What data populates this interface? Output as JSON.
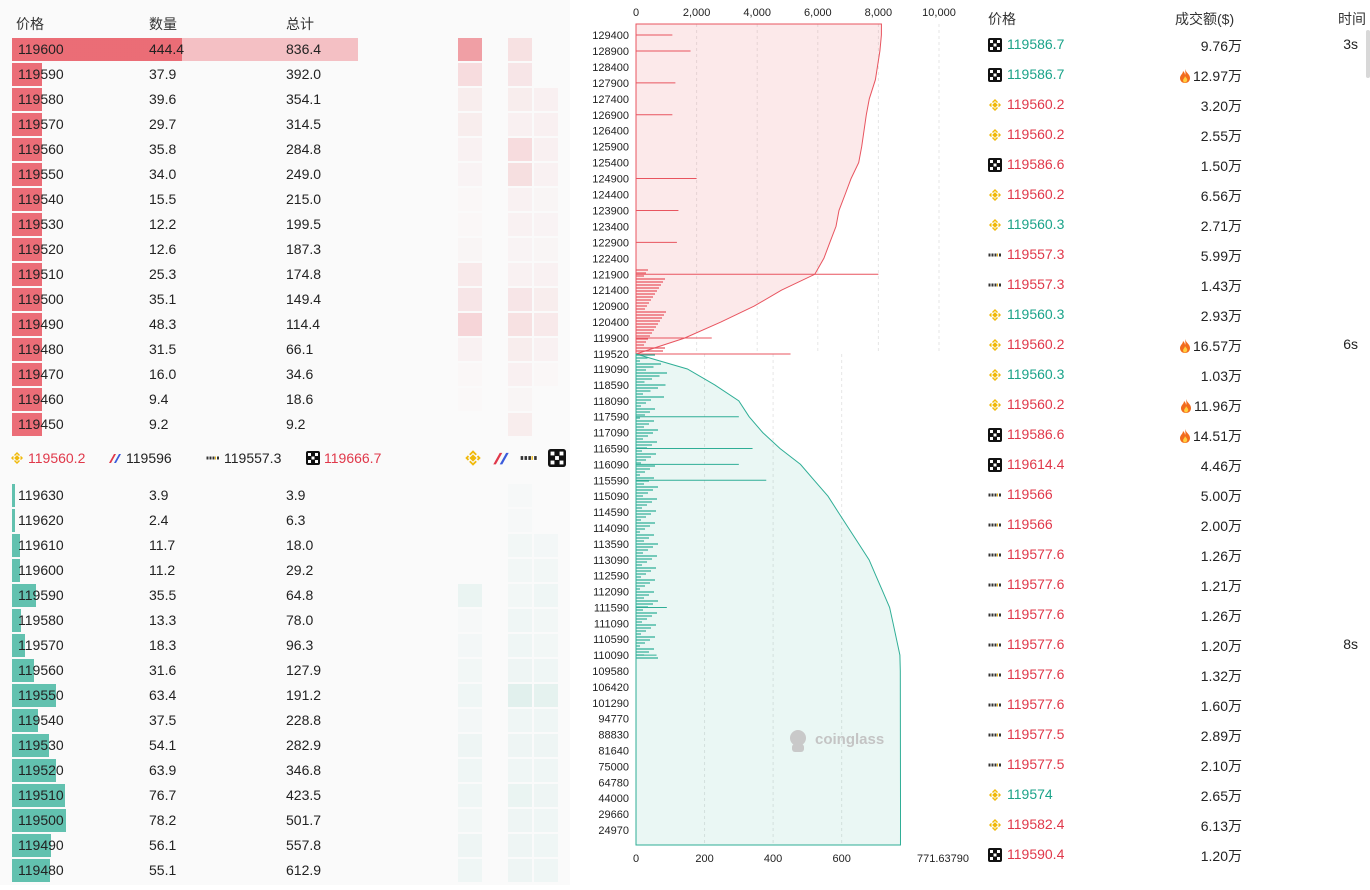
{
  "colors": {
    "ask": "#e8545f",
    "bid": "#2fae96",
    "up": "#1aa38a",
    "down": "#e0384a",
    "binance": "#f0b90b"
  },
  "orderbook": {
    "headers": {
      "price": "价格",
      "qty": "数量",
      "total": "总计"
    },
    "max_total": 836.4,
    "asks": [
      {
        "price": "119600",
        "qty": "444.4",
        "total": "836.4",
        "heat": [
          0.55,
          0.15,
          0
        ]
      },
      {
        "price": "119590",
        "qty": "37.9",
        "total": "392.0",
        "heat": [
          0.18,
          0.12,
          0
        ]
      },
      {
        "price": "119580",
        "qty": "39.6",
        "total": "354.1",
        "heat": [
          0.08,
          0.08,
          0.06
        ]
      },
      {
        "price": "119570",
        "qty": "29.7",
        "total": "314.5",
        "heat": [
          0.08,
          0.06,
          0.06
        ]
      },
      {
        "price": "119560",
        "qty": "35.8",
        "total": "284.8",
        "heat": [
          0.05,
          0.18,
          0.06
        ]
      },
      {
        "price": "119550",
        "qty": "34.0",
        "total": "249.0",
        "heat": [
          0.04,
          0.16,
          0.05
        ]
      },
      {
        "price": "119540",
        "qty": "15.5",
        "total": "215.0",
        "heat": [
          0.02,
          0.05,
          0.03
        ]
      },
      {
        "price": "119530",
        "qty": "12.2",
        "total": "199.5",
        "heat": [
          0.02,
          0.05,
          0.04
        ]
      },
      {
        "price": "119520",
        "qty": "12.6",
        "total": "187.3",
        "heat": [
          0.03,
          0.04,
          0.03
        ]
      },
      {
        "price": "119510",
        "qty": "25.3",
        "total": "174.8",
        "heat": [
          0.1,
          0.05,
          0.05
        ]
      },
      {
        "price": "119500",
        "qty": "35.1",
        "total": "149.4",
        "heat": [
          0.12,
          0.12,
          0.08
        ]
      },
      {
        "price": "119490",
        "qty": "48.3",
        "total": "114.4",
        "heat": [
          0.22,
          0.15,
          0.1
        ]
      },
      {
        "price": "119480",
        "qty": "31.5",
        "total": "66.1",
        "heat": [
          0.05,
          0.08,
          0.05
        ]
      },
      {
        "price": "119470",
        "qty": "16.0",
        "total": "34.6",
        "heat": [
          0.02,
          0.06,
          0.02
        ]
      },
      {
        "price": "119460",
        "qty": "9.4",
        "total": "18.6",
        "heat": [
          0.01,
          0.03,
          0
        ]
      },
      {
        "price": "119450",
        "qty": "9.2",
        "total": "9.2",
        "heat": [
          0,
          0.08,
          0
        ]
      }
    ],
    "bids": [
      {
        "price": "119630",
        "qty": "3.9",
        "total": "3.9",
        "heat": [
          0,
          0.02,
          0
        ]
      },
      {
        "price": "119620",
        "qty": "2.4",
        "total": "6.3",
        "heat": [
          0,
          0.02,
          0
        ]
      },
      {
        "price": "119610",
        "qty": "11.7",
        "total": "18.0",
        "heat": [
          0,
          0.04,
          0.03
        ]
      },
      {
        "price": "119600",
        "qty": "11.2",
        "total": "29.2",
        "heat": [
          0,
          0.04,
          0.04
        ]
      },
      {
        "price": "119590",
        "qty": "35.5",
        "total": "64.8",
        "heat": [
          0.08,
          0.04,
          0.05
        ]
      },
      {
        "price": "119580",
        "qty": "13.3",
        "total": "78.0",
        "heat": [
          0.02,
          0.05,
          0.04
        ]
      },
      {
        "price": "119570",
        "qty": "18.3",
        "total": "96.3",
        "heat": [
          0.03,
          0.05,
          0.04
        ]
      },
      {
        "price": "119560",
        "qty": "31.6",
        "total": "127.9",
        "heat": [
          0.04,
          0.06,
          0.05
        ]
      },
      {
        "price": "119550",
        "qty": "63.4",
        "total": "191.2",
        "heat": [
          0.05,
          0.12,
          0.1
        ]
      },
      {
        "price": "119540",
        "qty": "37.5",
        "total": "228.8",
        "heat": [
          0.03,
          0.05,
          0.05
        ]
      },
      {
        "price": "119530",
        "qty": "54.1",
        "total": "282.9",
        "heat": [
          0.06,
          0.06,
          0.06
        ]
      },
      {
        "price": "119520",
        "qty": "63.9",
        "total": "346.8",
        "heat": [
          0.05,
          0.05,
          0.05
        ]
      },
      {
        "price": "119510",
        "qty": "76.7",
        "total": "423.5",
        "heat": [
          0.05,
          0.08,
          0.06
        ]
      },
      {
        "price": "119500",
        "qty": "78.2",
        "total": "501.7",
        "heat": [
          0.04,
          0.06,
          0.05
        ]
      },
      {
        "price": "119490",
        "qty": "56.1",
        "total": "557.8",
        "heat": [
          0.06,
          0.06,
          0.05
        ]
      },
      {
        "price": "119480",
        "qty": "55.1",
        "total": "612.9",
        "heat": [
          0.05,
          0.06,
          0.05
        ]
      }
    ],
    "exchanges": [
      {
        "icon": "binance",
        "price": "119560.2",
        "color": "#e0384a"
      },
      {
        "icon": "bitmex",
        "price": "119596",
        "color": "#222"
      },
      {
        "icon": "bybit",
        "price": "119557.3",
        "color": "#222"
      },
      {
        "icon": "okx",
        "price": "119666.7",
        "color": "#e0384a"
      }
    ]
  },
  "chart_data": {
    "type": "area",
    "title": "",
    "top_axis": {
      "label": "",
      "range": [
        0,
        10000
      ],
      "ticks": [
        "0",
        "2,000",
        "4,000",
        "6,000",
        "8,000",
        "10,000"
      ]
    },
    "bottom_axis": {
      "label": "",
      "range": [
        0,
        800
      ],
      "ticks": [
        "0",
        "200",
        "400",
        "600",
        "771.63790"
      ]
    },
    "ask_ticks": [
      "129400",
      "128900",
      "128400",
      "127900",
      "127400",
      "126900",
      "126400",
      "125900",
      "125400",
      "124900",
      "124400",
      "123900",
      "123400",
      "122900",
      "122400",
      "121900",
      "121400",
      "120900",
      "120400",
      "119900",
      "119520"
    ],
    "bid_ticks": [
      "119090",
      "118590",
      "118090",
      "117590",
      "117090",
      "116590",
      "116090",
      "115590",
      "115090",
      "114590",
      "114090",
      "113590",
      "113090",
      "112590",
      "112090",
      "111590",
      "111090",
      "110590",
      "110090",
      "109580",
      "106420",
      "101290",
      "94770",
      "88830",
      "81640",
      "75000",
      "64780",
      "44000",
      "29660",
      "24970"
    ],
    "ask_cumulative": [
      [
        129400,
        8100
      ],
      [
        128900,
        8050
      ],
      [
        128000,
        7900
      ],
      [
        127400,
        7700
      ],
      [
        126900,
        7600
      ],
      [
        125900,
        7450
      ],
      [
        125400,
        7350
      ],
      [
        124900,
        7100
      ],
      [
        124400,
        6900
      ],
      [
        123900,
        6700
      ],
      [
        123400,
        6600
      ],
      [
        122900,
        6400
      ],
      [
        122400,
        6200
      ],
      [
        121900,
        5900
      ],
      [
        121400,
        4800
      ],
      [
        120900,
        3900
      ],
      [
        120400,
        2800
      ],
      [
        119900,
        1600
      ],
      [
        119520,
        0
      ]
    ],
    "bid_cumulative": [
      [
        119520,
        0
      ],
      [
        119090,
        150
      ],
      [
        118590,
        230
      ],
      [
        118090,
        300
      ],
      [
        117590,
        330
      ],
      [
        117090,
        370
      ],
      [
        116590,
        420
      ],
      [
        116090,
        480
      ],
      [
        115590,
        520
      ],
      [
        115090,
        560
      ],
      [
        114590,
        590
      ],
      [
        114090,
        620
      ],
      [
        113590,
        650
      ],
      [
        113090,
        680
      ],
      [
        112590,
        700
      ],
      [
        112090,
        720
      ],
      [
        111590,
        740
      ],
      [
        111090,
        750
      ],
      [
        110590,
        760
      ],
      [
        110090,
        770
      ],
      [
        109580,
        771
      ],
      [
        44000,
        771.6
      ],
      [
        24970,
        771.6
      ]
    ],
    "ask_levels": [
      [
        129400,
        1200
      ],
      [
        128900,
        1800
      ],
      [
        127900,
        1300
      ],
      [
        126900,
        1200
      ],
      [
        124900,
        2000
      ],
      [
        123900,
        1400
      ],
      [
        122900,
        1350
      ],
      [
        121900,
        8000
      ],
      [
        119900,
        2500
      ],
      [
        119520,
        5100
      ]
    ],
    "bid_levels": [
      [
        117590,
        300
      ],
      [
        116590,
        340
      ],
      [
        116090,
        300
      ],
      [
        115590,
        380
      ],
      [
        111590,
        90
      ],
      [
        110090,
        60
      ]
    ],
    "watermark": "coinglass"
  },
  "trades": {
    "headers": {
      "price": "价格",
      "amount": "成交额($)",
      "time": "时间"
    },
    "rows": [
      {
        "ex": "okx",
        "price": "119586.7",
        "dir": "up",
        "amount": "9.76万",
        "hot": false,
        "time": "3s"
      },
      {
        "ex": "okx",
        "price": "119586.7",
        "dir": "up",
        "amount": "12.97万",
        "hot": true,
        "time": ""
      },
      {
        "ex": "binance",
        "price": "119560.2",
        "dir": "dn",
        "amount": "3.20万",
        "hot": false,
        "time": ""
      },
      {
        "ex": "binance",
        "price": "119560.2",
        "dir": "dn",
        "amount": "2.55万",
        "hot": false,
        "time": ""
      },
      {
        "ex": "okx",
        "price": "119586.6",
        "dir": "dn",
        "amount": "1.50万",
        "hot": false,
        "time": ""
      },
      {
        "ex": "binance",
        "price": "119560.2",
        "dir": "dn",
        "amount": "6.56万",
        "hot": false,
        "time": ""
      },
      {
        "ex": "binance",
        "price": "119560.3",
        "dir": "up",
        "amount": "2.71万",
        "hot": false,
        "time": ""
      },
      {
        "ex": "bybit",
        "price": "119557.3",
        "dir": "dn",
        "amount": "5.99万",
        "hot": false,
        "time": ""
      },
      {
        "ex": "bybit",
        "price": "119557.3",
        "dir": "dn",
        "amount": "1.43万",
        "hot": false,
        "time": ""
      },
      {
        "ex": "binance",
        "price": "119560.3",
        "dir": "up",
        "amount": "2.93万",
        "hot": false,
        "time": ""
      },
      {
        "ex": "binance",
        "price": "119560.2",
        "dir": "dn",
        "amount": "16.57万",
        "hot": true,
        "time": "6s"
      },
      {
        "ex": "binance",
        "price": "119560.3",
        "dir": "up",
        "amount": "1.03万",
        "hot": false,
        "time": ""
      },
      {
        "ex": "binance",
        "price": "119560.2",
        "dir": "dn",
        "amount": "11.96万",
        "hot": true,
        "time": ""
      },
      {
        "ex": "okx",
        "price": "119586.6",
        "dir": "dn",
        "amount": "14.51万",
        "hot": true,
        "time": ""
      },
      {
        "ex": "okx",
        "price": "119614.4",
        "dir": "dn",
        "amount": "4.46万",
        "hot": false,
        "time": ""
      },
      {
        "ex": "bybit",
        "price": "119566",
        "dir": "dn",
        "amount": "5.00万",
        "hot": false,
        "time": ""
      },
      {
        "ex": "bybit",
        "price": "119566",
        "dir": "dn",
        "amount": "2.00万",
        "hot": false,
        "time": ""
      },
      {
        "ex": "bybit",
        "price": "119577.6",
        "dir": "dn",
        "amount": "1.26万",
        "hot": false,
        "time": ""
      },
      {
        "ex": "bybit",
        "price": "119577.6",
        "dir": "dn",
        "amount": "1.21万",
        "hot": false,
        "time": ""
      },
      {
        "ex": "bybit",
        "price": "119577.6",
        "dir": "dn",
        "amount": "1.26万",
        "hot": false,
        "time": ""
      },
      {
        "ex": "bybit",
        "price": "119577.6",
        "dir": "dn",
        "amount": "1.20万",
        "hot": false,
        "time": "8s"
      },
      {
        "ex": "bybit",
        "price": "119577.6",
        "dir": "dn",
        "amount": "1.32万",
        "hot": false,
        "time": ""
      },
      {
        "ex": "bybit",
        "price": "119577.6",
        "dir": "dn",
        "amount": "1.60万",
        "hot": false,
        "time": ""
      },
      {
        "ex": "bybit",
        "price": "119577.5",
        "dir": "dn",
        "amount": "2.89万",
        "hot": false,
        "time": ""
      },
      {
        "ex": "bybit",
        "price": "119577.5",
        "dir": "dn",
        "amount": "2.10万",
        "hot": false,
        "time": ""
      },
      {
        "ex": "binance",
        "price": "119574",
        "dir": "up",
        "amount": "2.65万",
        "hot": false,
        "time": ""
      },
      {
        "ex": "binance",
        "price": "119582.4",
        "dir": "dn",
        "amount": "6.13万",
        "hot": false,
        "time": ""
      },
      {
        "ex": "okx",
        "price": "119590.4",
        "dir": "dn",
        "amount": "1.20万",
        "hot": false,
        "time": ""
      }
    ]
  }
}
